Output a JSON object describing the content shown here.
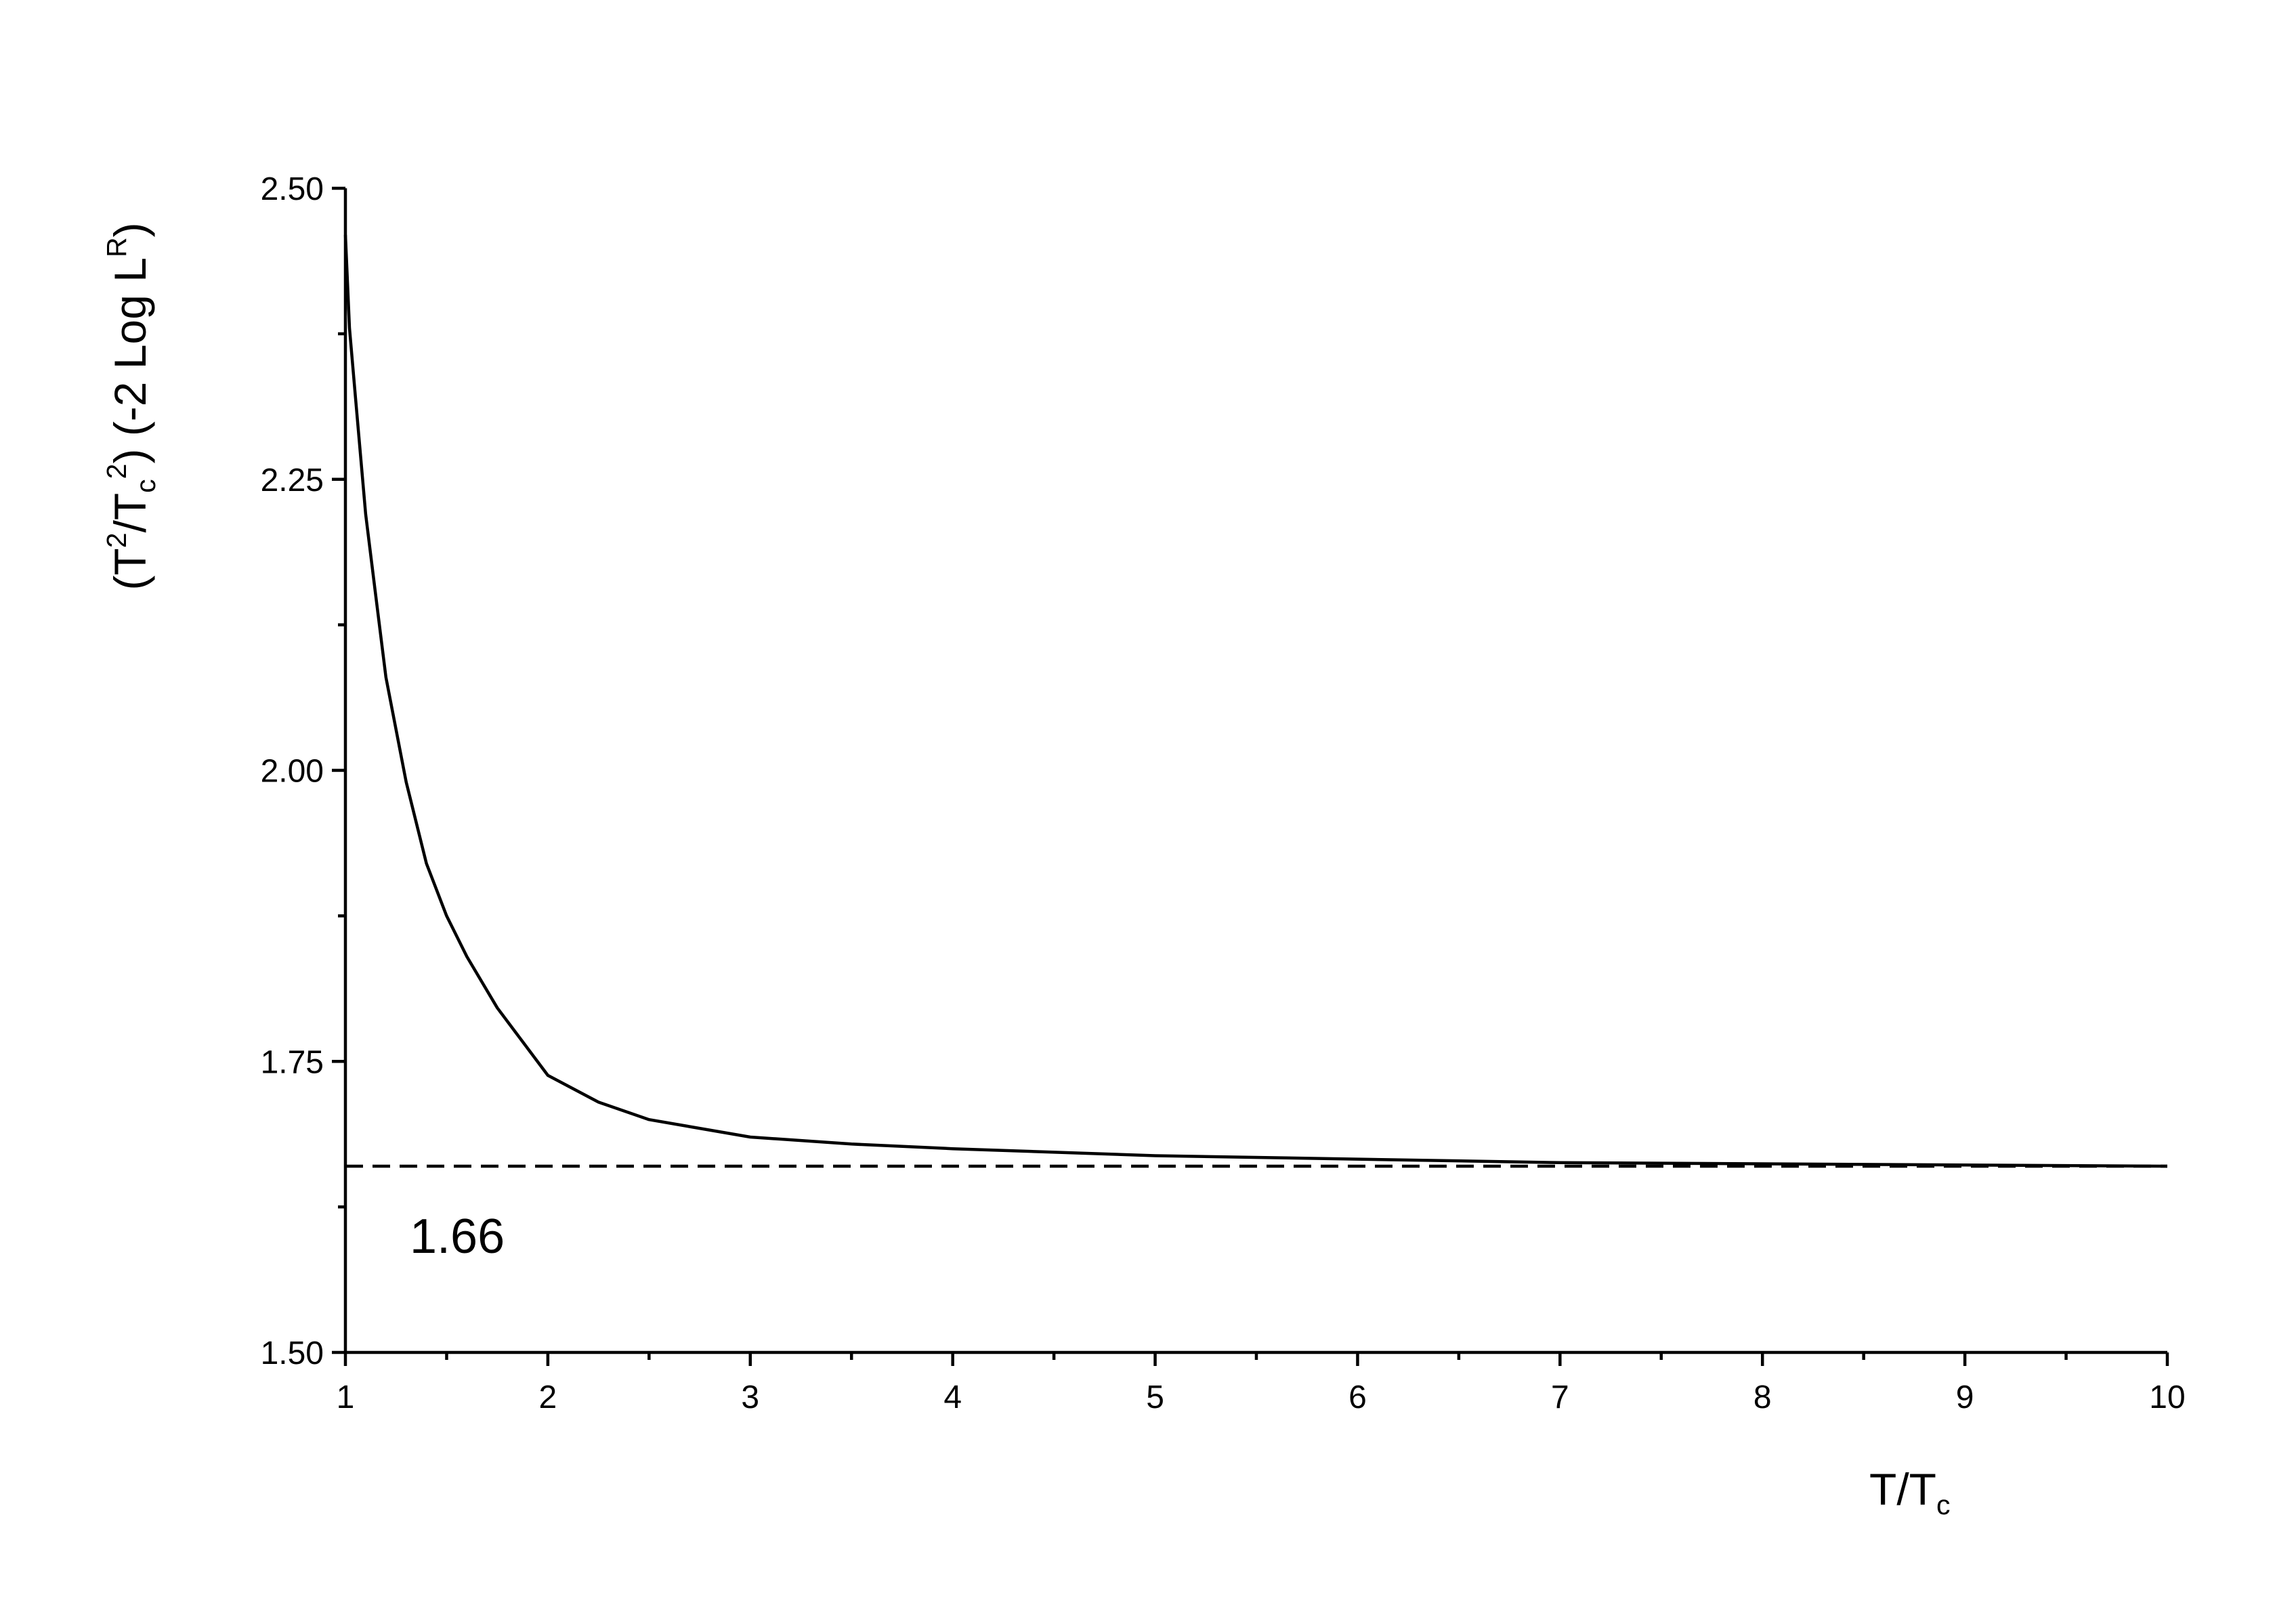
{
  "chart_data": {
    "type": "line",
    "x_label_parts": [
      "T/T",
      "c"
    ],
    "x_label_styles": [
      "normal",
      "sub"
    ],
    "y_label_parts": [
      "(T",
      "2",
      "/T",
      "c",
      "2",
      ") (-2 Log L",
      "R",
      ")"
    ],
    "y_label_styles": [
      "normal",
      "super",
      "normal",
      "sub",
      "super",
      "normal",
      "super",
      "normal"
    ],
    "series": [
      {
        "name": "curve",
        "color": "#000000",
        "x": [
          1,
          1.02,
          1.05,
          1.1,
          1.15,
          1.2,
          1.3,
          1.4,
          1.5,
          1.6,
          1.75,
          2,
          2.25,
          2.5,
          3,
          3.5,
          4,
          5,
          6,
          7,
          8,
          9,
          10
        ],
        "values": [
          2.46,
          2.38,
          2.32,
          2.22,
          2.15,
          2.08,
          1.99,
          1.92,
          1.875,
          1.84,
          1.796,
          1.738,
          1.715,
          1.7,
          1.685,
          1.679,
          1.675,
          1.669,
          1.666,
          1.663,
          1.662,
          1.661,
          1.66
        ]
      }
    ],
    "reference_line": {
      "value": 1.66,
      "color": "#000000",
      "style": "dashed"
    },
    "annotation": "1.66",
    "xlim": [
      1,
      10
    ],
    "xticks": [
      1,
      2,
      3,
      4,
      5,
      6,
      7,
      8,
      9,
      10
    ],
    "xminorticks": [
      1.5,
      2.5,
      3.5,
      4.5,
      5.5,
      6.5,
      7.5,
      8.5,
      9.5
    ],
    "ylim": [
      1.5,
      2.5
    ],
    "yticks": [
      {
        "value": 1.5,
        "label": "1.50"
      },
      {
        "value": 1.75,
        "label": "1.75"
      },
      {
        "value": 2,
        "label": "2.00"
      },
      {
        "value": 2.25,
        "label": "2.25"
      },
      {
        "value": 2.5,
        "label": "2.50"
      }
    ],
    "yminorticks": [
      1.625,
      1.875,
      2.125,
      2.375
    ],
    "grid": false
  }
}
